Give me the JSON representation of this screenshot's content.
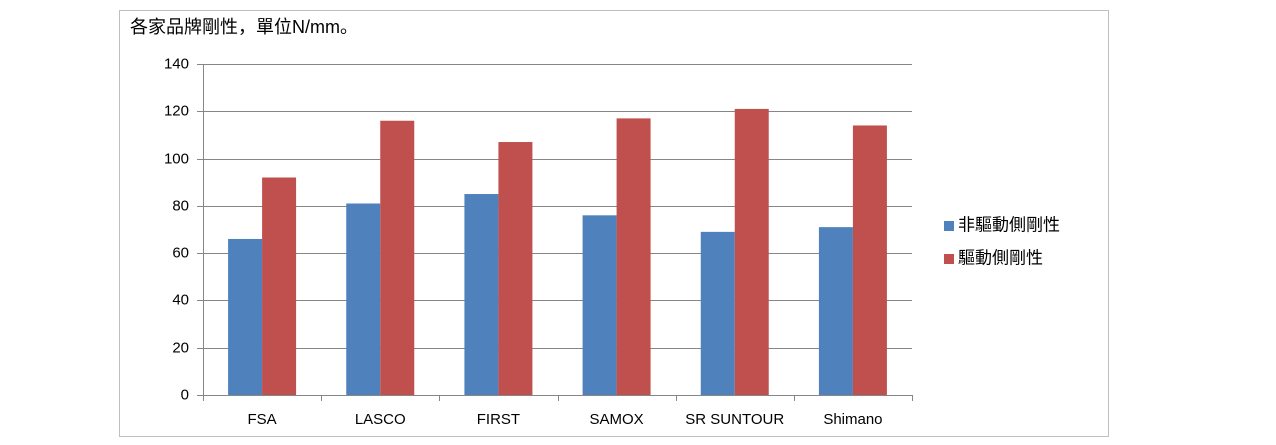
{
  "chart_data": {
    "type": "bar",
    "title": "各家品牌剛性，單位N/mm。",
    "categories": [
      "FSA",
      "LASCO",
      "FIRST",
      "SAMOX",
      "SR SUNTOUR",
      "Shimano"
    ],
    "series": [
      {
        "name": "非驅動側剛性",
        "color": "#4f81bd",
        "values": [
          66,
          81,
          85,
          76,
          69,
          71
        ]
      },
      {
        "name": "驅動側剛性",
        "color": "#c0504d",
        "values": [
          92,
          116,
          107,
          117,
          121,
          114
        ]
      }
    ],
    "ylim": [
      0,
      140
    ],
    "yticks": [
      0,
      20,
      40,
      60,
      80,
      100,
      120,
      140
    ],
    "grid": true,
    "legend": "right"
  }
}
